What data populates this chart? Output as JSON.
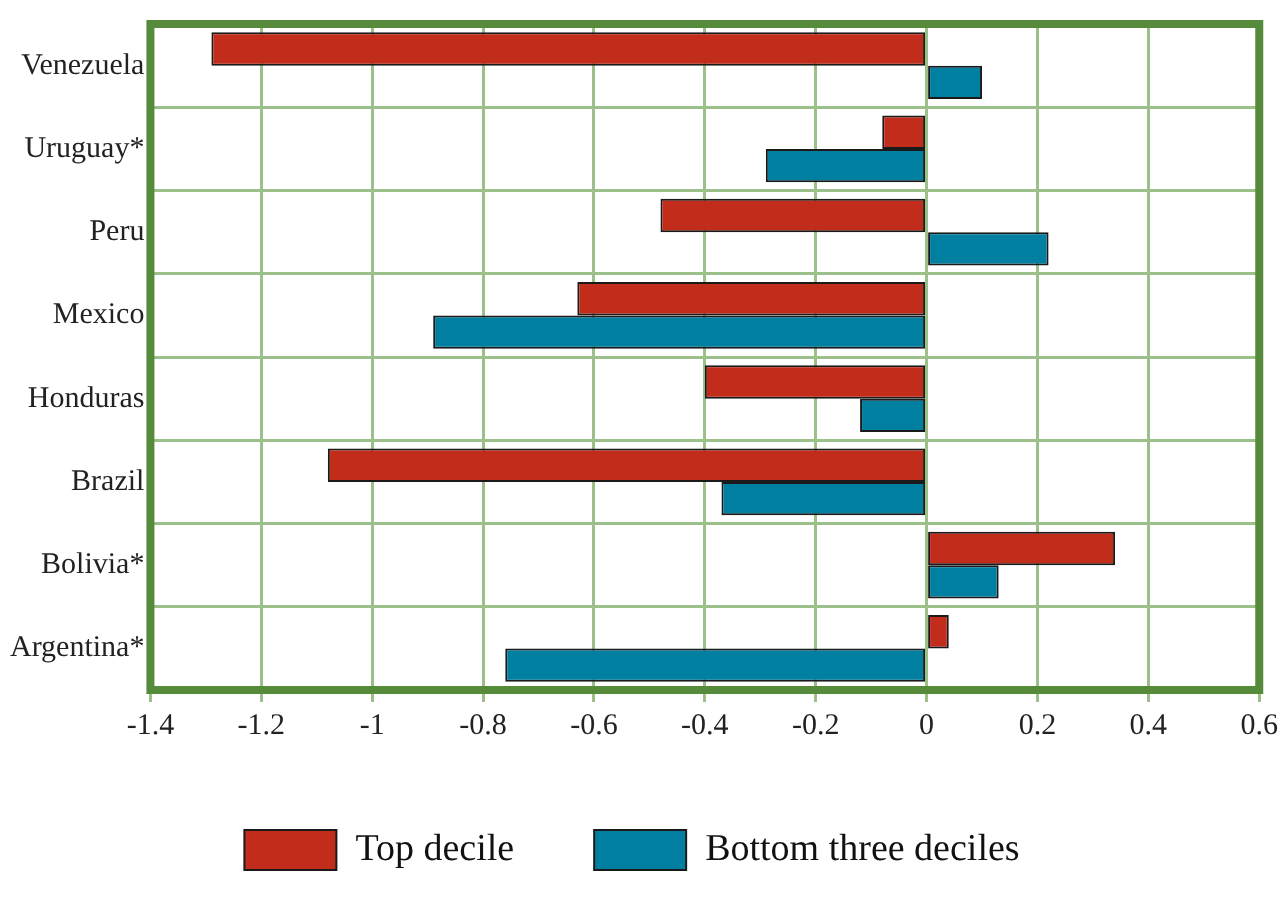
{
  "chart_data": {
    "type": "bar",
    "orientation": "horizontal",
    "categories": [
      "Venezuela",
      "Uruguay*",
      "Peru",
      "Mexico",
      "Honduras",
      "Brazil",
      "Bolivia*",
      "Argentina*"
    ],
    "series": [
      {
        "name": "Top decile",
        "color": "#c22d1b",
        "values": [
          -1.29,
          -0.08,
          -0.48,
          -0.63,
          -0.4,
          -1.08,
          0.34,
          0.04
        ]
      },
      {
        "name": "Bottom three deciles",
        "color": "#007fa0",
        "values": [
          0.1,
          -0.29,
          0.22,
          -0.89,
          -0.12,
          -0.37,
          0.13,
          -0.76
        ]
      }
    ],
    "xlim": [
      -1.4,
      0.6
    ],
    "xticks": [
      -1.4,
      -1.2,
      -1,
      -0.8,
      -0.6,
      -0.4,
      -0.2,
      0,
      0.2,
      0.4,
      0.6
    ],
    "grid": true,
    "legend": "bottom"
  }
}
